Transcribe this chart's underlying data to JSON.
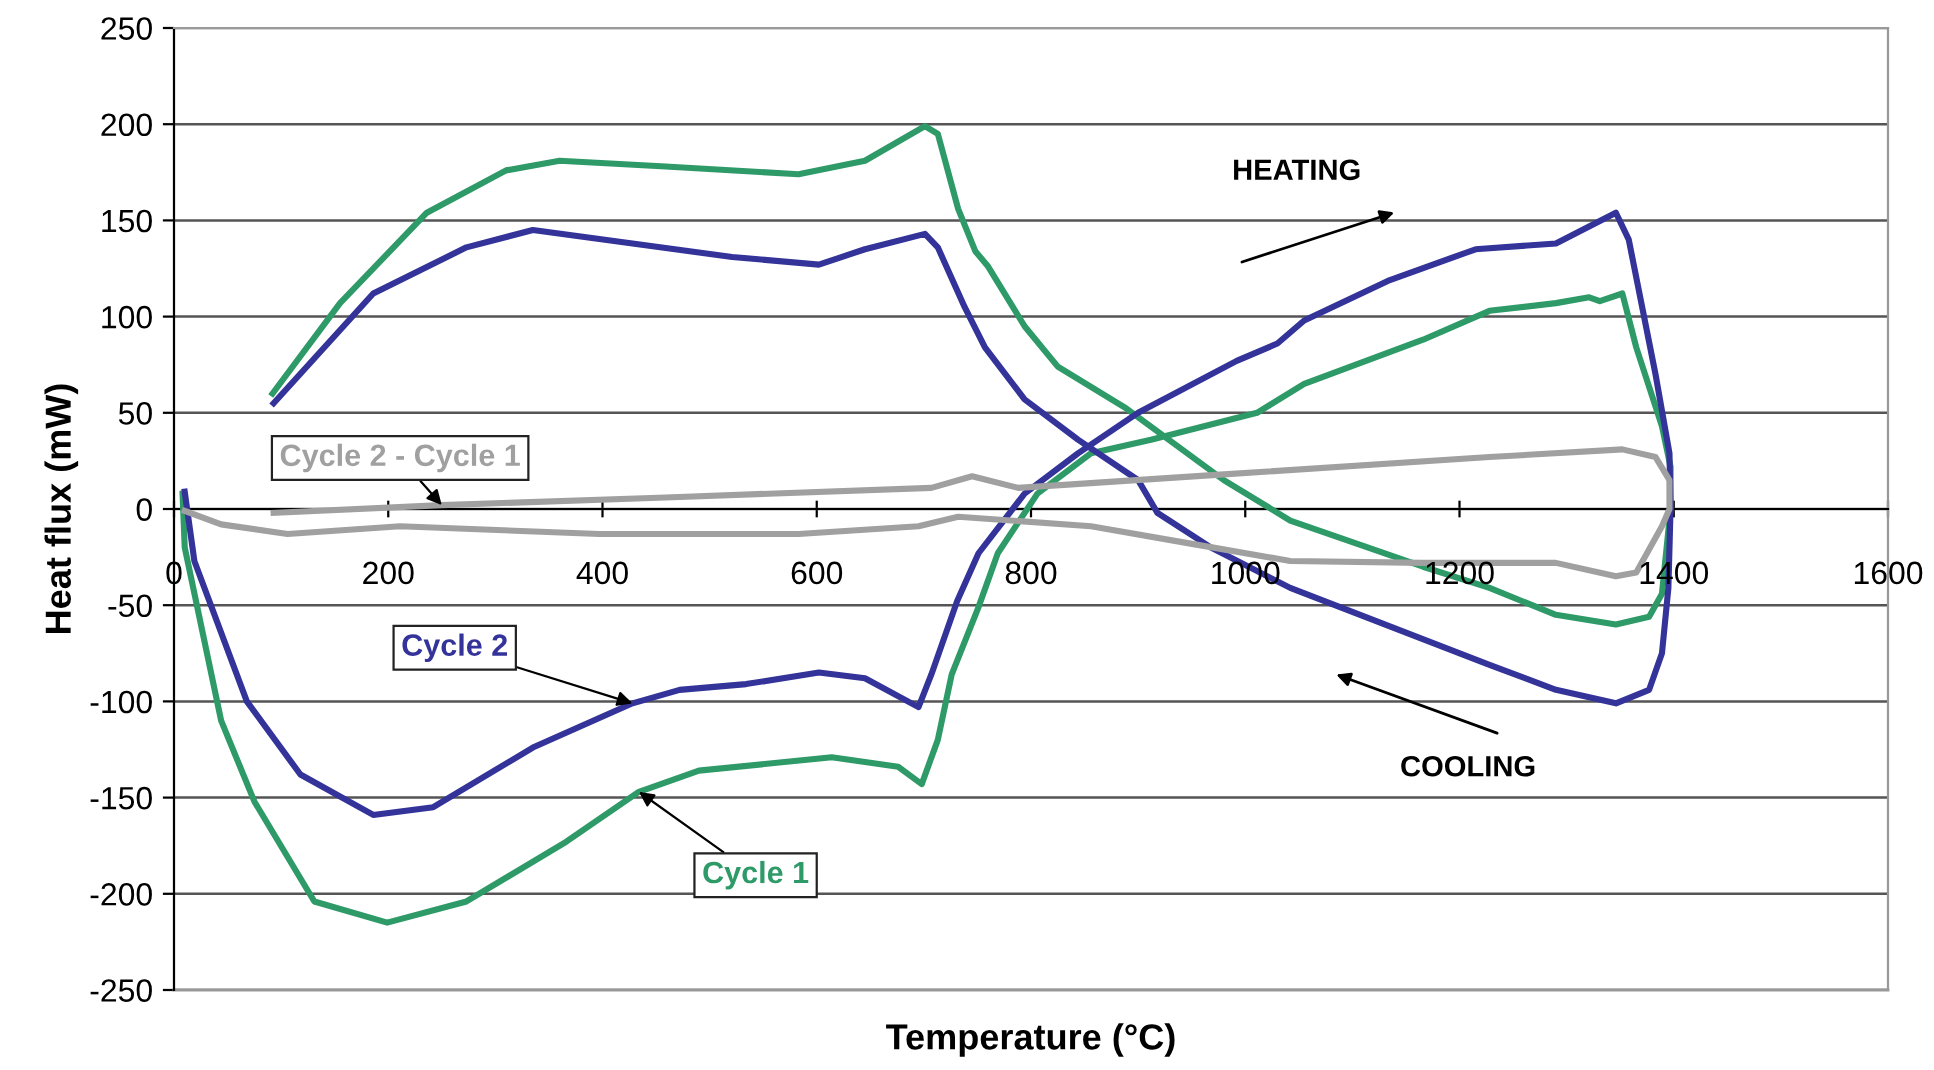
{
  "chart_data": {
    "type": "line",
    "xlabel": "Temperature (°C)",
    "ylabel": "Heat flux (mW)",
    "xlim": [
      0,
      1600
    ],
    "xticks": [
      0,
      200,
      400,
      600,
      800,
      1000,
      1200,
      1400,
      1600
    ],
    "ylim": [
      -250,
      250
    ],
    "yticks": [
      -250,
      -200,
      -150,
      -100,
      -50,
      0,
      50,
      100,
      150,
      200,
      250
    ],
    "grid": "y",
    "legend": false,
    "marker": "none",
    "line_style": "solid",
    "annotations": [
      "HEATING",
      "COOLING"
    ],
    "series": [
      {
        "name": "Cycle 1",
        "color": "#2e9a68",
        "x": [
          8,
          10,
          44,
          75,
          131,
          199,
          273,
          366,
          434,
          490,
          614,
          676,
          698,
          713,
          726,
          751,
          769,
          806,
          856,
          912,
          1011,
          1055,
          1166,
          1228,
          1290,
          1321,
          1331,
          1352,
          1365,
          1389,
          1397,
          1397,
          1389,
          1377,
          1346,
          1290,
          1228,
          1166,
          1042,
          980,
          887,
          825,
          794,
          760,
          748,
          732,
          713,
          701,
          645,
          583,
          459,
          360,
          310,
          236,
          155,
          92
        ],
        "values": [
          8,
          -20,
          -110,
          -152,
          -204,
          -215,
          -204,
          -173,
          -147,
          -136,
          -129,
          -134,
          -143,
          -120,
          -86,
          -51,
          -23,
          8,
          29,
          36,
          50,
          65,
          88,
          103,
          107,
          110,
          108,
          112,
          84,
          43,
          22,
          0,
          -44,
          -56,
          -60,
          -55,
          -41,
          -30,
          -6,
          15,
          53,
          74,
          95,
          126,
          134,
          156,
          195,
          199,
          181,
          174,
          178,
          181,
          176,
          154,
          107,
          60
        ]
      },
      {
        "name": "Cycle 2",
        "color": "#33339a",
        "x": [
          10,
          19,
          68,
          118,
          186,
          242,
          335,
          428,
          472,
          534,
          602,
          645,
          695,
          707,
          731,
          751,
          794,
          844,
          900,
          992,
          1030,
          1055,
          1135,
          1215,
          1290,
          1346,
          1358,
          1383,
          1396,
          1397,
          1395,
          1389,
          1377,
          1346,
          1290,
          1228,
          1135,
          1042,
          968,
          918,
          900,
          844,
          794,
          757,
          738,
          713,
          701,
          645,
          602,
          521,
          428,
          335,
          273,
          186,
          93
        ],
        "values": [
          9,
          -27,
          -100,
          -138,
          -159,
          -155,
          -124,
          -101,
          -94,
          -91,
          -85,
          -88,
          -103,
          -86,
          -48,
          -23,
          8,
          29,
          50,
          77,
          86,
          98,
          119,
          135,
          138,
          154,
          140,
          70,
          29,
          0,
          -41,
          -75,
          -94,
          -101,
          -94,
          -81,
          -61,
          -41,
          -20,
          -2,
          15,
          36,
          57,
          84,
          105,
          136,
          143,
          135,
          127,
          131,
          138,
          145,
          136,
          112,
          55
        ]
      },
      {
        "name": "Cycle 2 - Cycle 1",
        "color": "#a0a0a0",
        "x": [
          10,
          44,
          106,
          211,
          397,
          583,
          695,
          732,
          856,
          949,
          1042,
          1166,
          1290,
          1346,
          1365,
          1389,
          1396,
          1396,
          1383,
          1352,
          1228,
          980,
          788,
          745,
          707,
          459,
          250,
          93
        ],
        "values": [
          -1,
          -8,
          -13,
          -9,
          -13,
          -13,
          -9,
          -4,
          -9,
          -18,
          -27,
          -28,
          -28,
          -35,
          -33,
          -9,
          0,
          15,
          27,
          31,
          27,
          18,
          11,
          17,
          11,
          6,
          2,
          -2
        ]
      }
    ]
  }
}
